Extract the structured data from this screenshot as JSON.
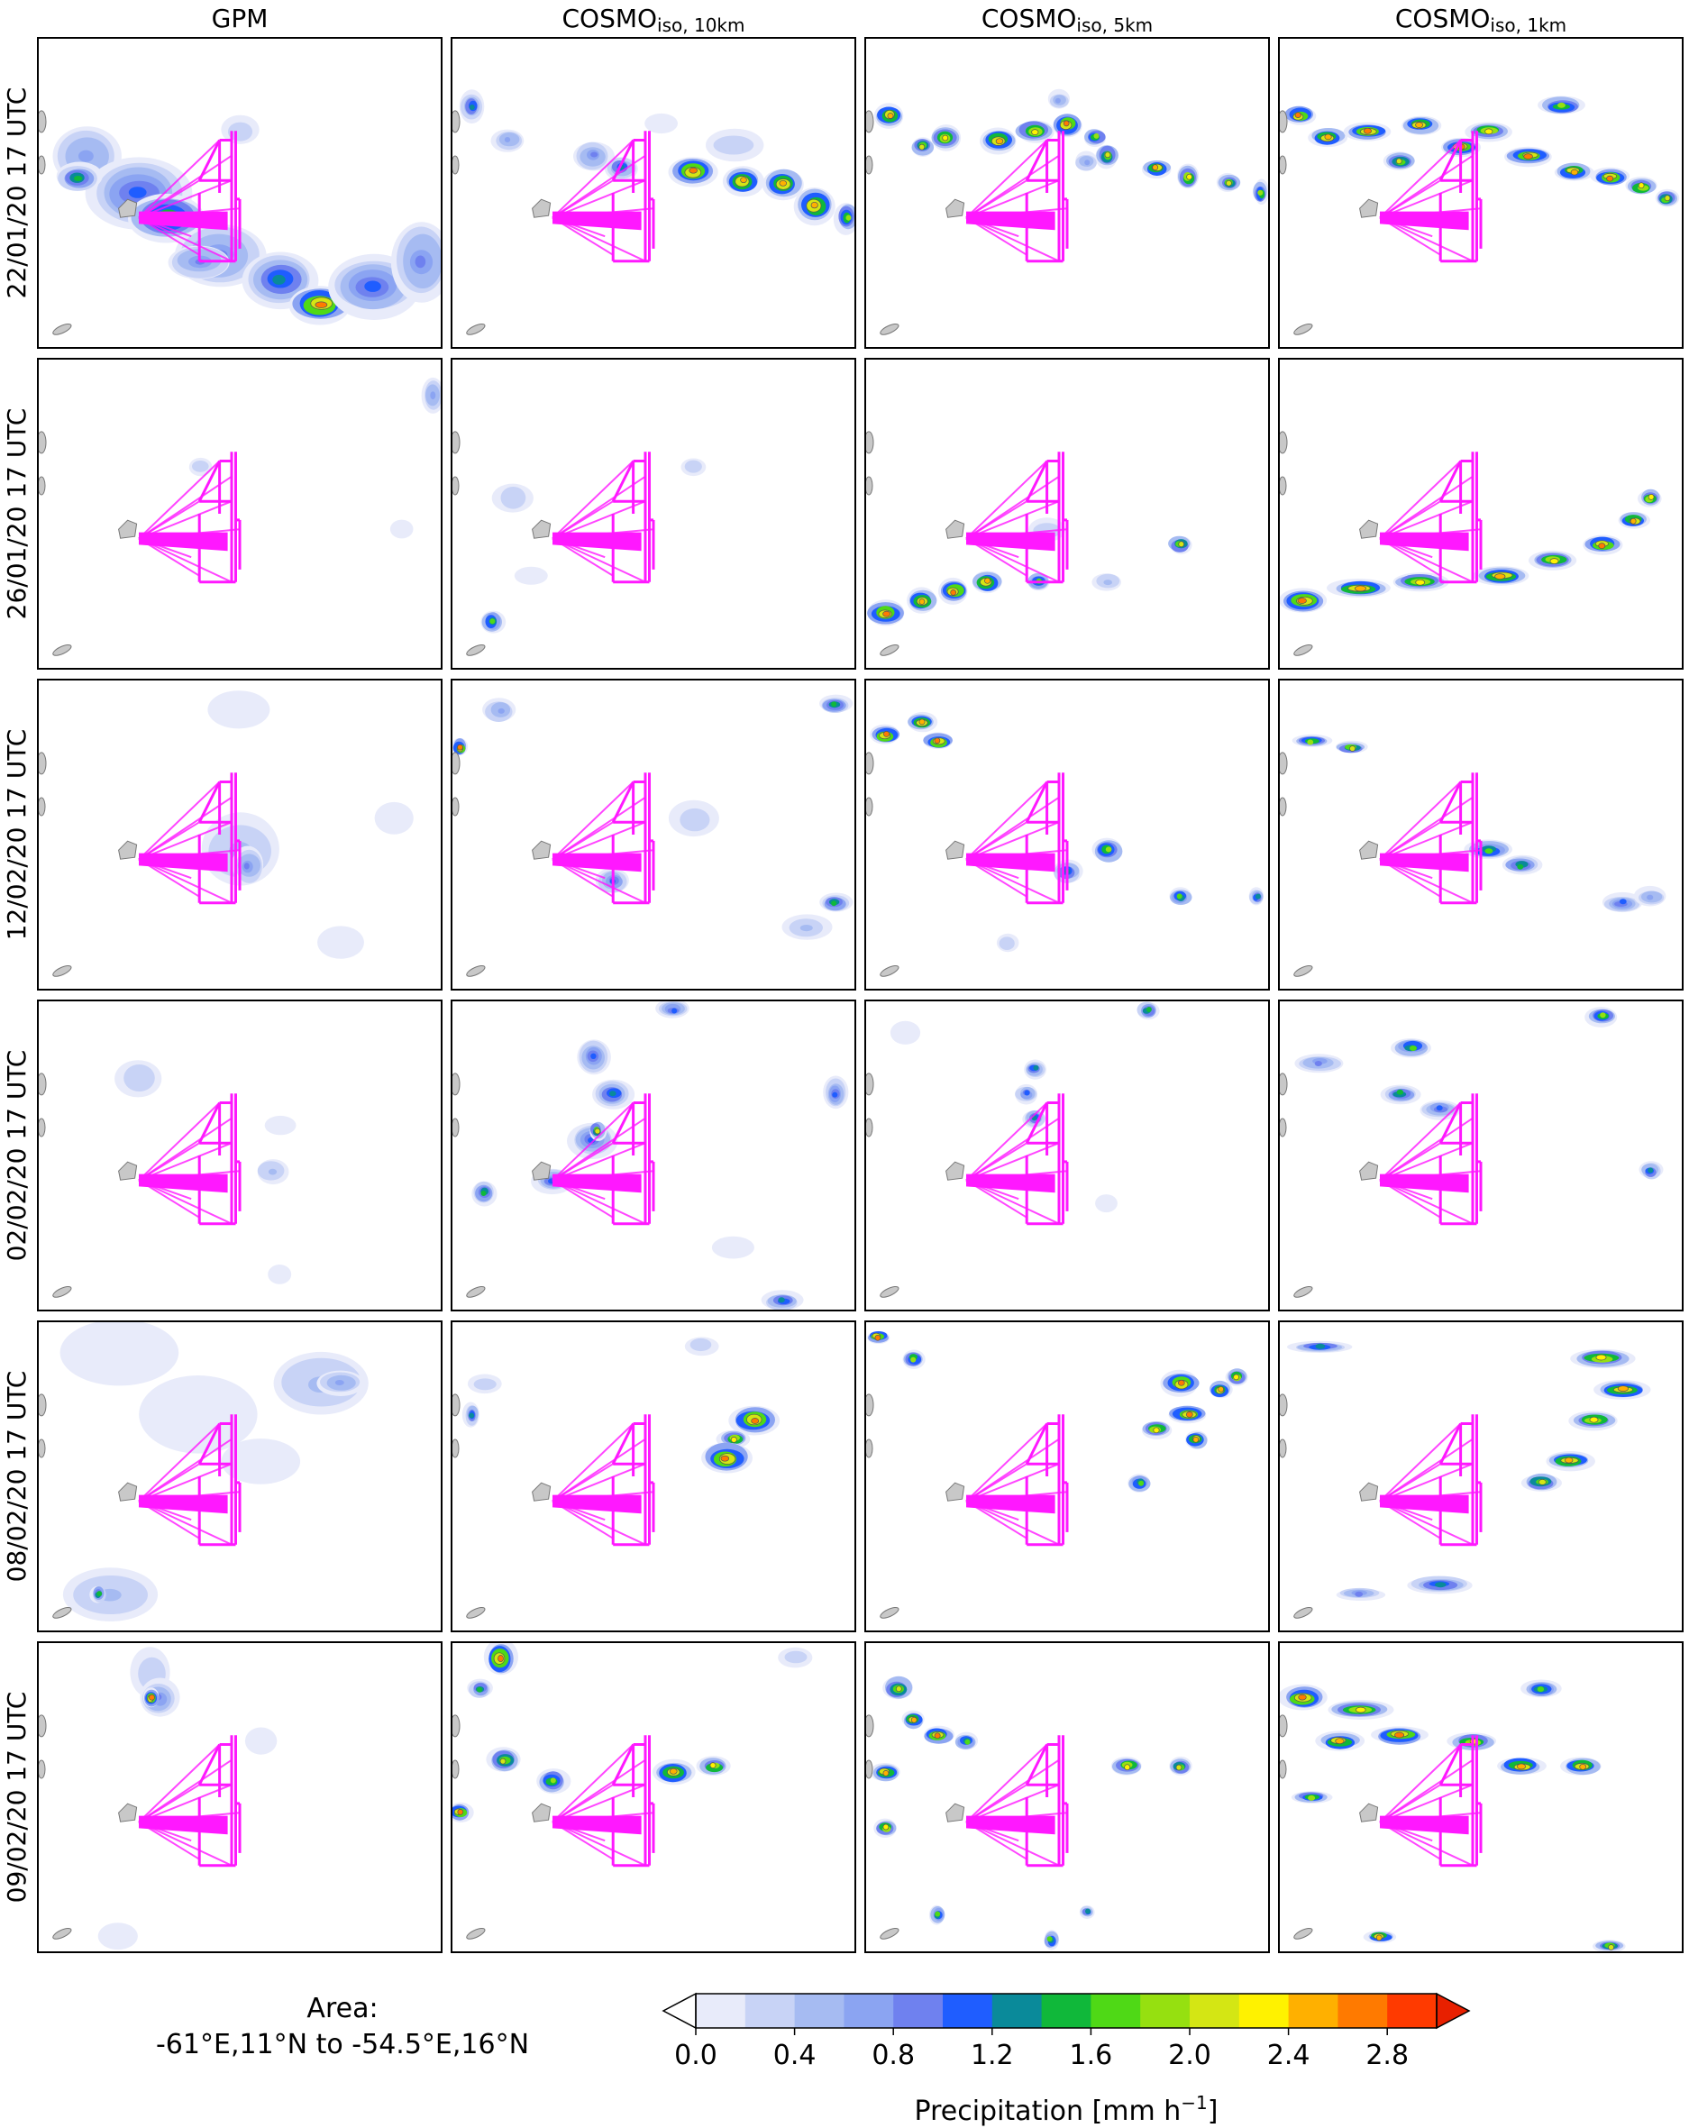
{
  "chart_data": {
    "type": "heatmap",
    "columns": [
      {
        "main": "GPM",
        "sub": ""
      },
      {
        "main": "COSMO",
        "sub": "iso, 10km"
      },
      {
        "main": "COSMO",
        "sub": "iso, 5km"
      },
      {
        "main": "COSMO",
        "sub": "iso, 1km"
      }
    ],
    "rows": [
      "22/01/20 17 UTC",
      "26/01/20 17 UTC",
      "12/02/20 17 UTC",
      "02/02/20 17 UTC",
      "08/02/20 17 UTC",
      "09/02/20 17 UTC"
    ],
    "area_label": "Area:",
    "area_value": "-61°E,11°N to -54.5°E,16°N",
    "colorbar": {
      "label": "Precipitation [mm h",
      "label_sup": "−1",
      "label_end": "]",
      "ticks": [
        "0.0",
        "0.4",
        "0.8",
        "1.2",
        "1.6",
        "2.0",
        "2.4",
        "2.8"
      ],
      "tick_values": [
        0.0,
        0.4,
        0.8,
        1.2,
        1.6,
        2.0,
        2.4,
        2.8
      ],
      "range": [
        0.0,
        3.0
      ],
      "step": 0.2,
      "extend": "both",
      "colors": [
        "#e8ebfa",
        "#c8d3f6",
        "#a6bbf2",
        "#8ba4f2",
        "#6f81ef",
        "#1f5dff",
        "#0a8a9a",
        "#10b83a",
        "#4fd916",
        "#96e010",
        "#d4e614",
        "#fff200",
        "#ffb000",
        "#ff7a00",
        "#ff3a00"
      ],
      "over_color": "#e82000",
      "under_color": "#ffffff"
    },
    "flight_track_color": "#ff18ff",
    "island_color": "#c8c8c8"
  }
}
